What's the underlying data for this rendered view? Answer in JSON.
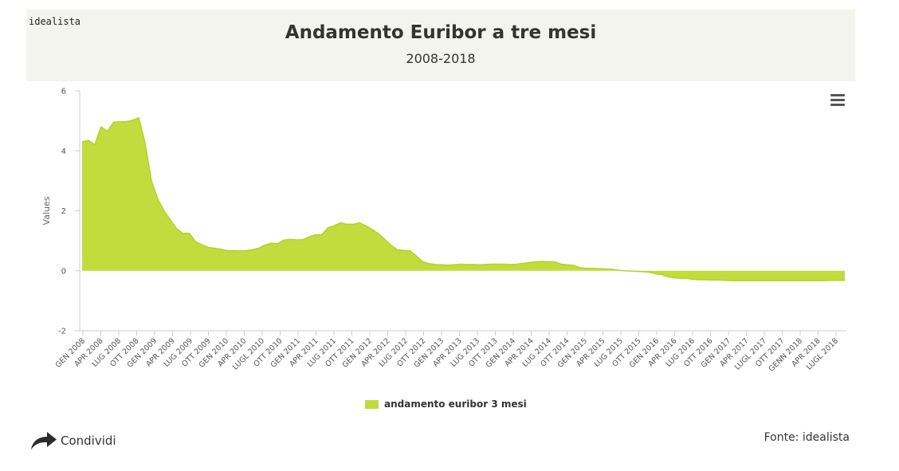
{
  "header": {
    "brand": "idealista",
    "title": "Andamento Euribor a tre mesi",
    "subtitle": "2008-2018"
  },
  "footer": {
    "share_label": "Condividi",
    "source": "Fonte: idealista"
  },
  "icons": {
    "menu": "hamburger-menu-icon",
    "share": "share-arrow-icon"
  },
  "chart_data": {
    "type": "area",
    "title": "Andamento Euribor a tre mesi",
    "subtitle": "2008-2018",
    "xlabel": "",
    "ylabel": "Values",
    "ylim": [
      -2,
      6
    ],
    "yticks": [
      -2,
      0,
      2,
      4,
      6
    ],
    "grid": false,
    "legend_position": "bottom-center",
    "color": "#c2dc3e",
    "xtick_labels": [
      "GEN 2008",
      "APR 2008",
      "LUG 2008",
      "OTT 2008",
      "GEN 2009",
      "APR 2009",
      "LUG 2009",
      "OTT 2009",
      "GEN 2010",
      "APR 2010",
      "LUGL 2010",
      "OTT 2010",
      "GEN 2011",
      "APR 2011",
      "LUG 2011",
      "OTT 2011",
      "GEN 2012",
      "APR 2012",
      "LUG 2012",
      "OTT 2012",
      "GEN 2013",
      "APR 2013",
      "LUG 2013",
      "OTT 2013",
      "GEN 2014",
      "APR 2014",
      "LUG 2014",
      "OTT 2014",
      "GEN 2015",
      "APR 2015",
      "LUG 2015",
      "OTT 2015",
      "GEN 2016",
      "APR 2016",
      "LUG 2016",
      "OTT 2016",
      "GEN 2017",
      "APR 2017",
      "LUGL 2017",
      "OTT 2017",
      "GENN 2018",
      "APR 2018",
      "LUGL 2018"
    ],
    "series": [
      {
        "name": "andamento euribor 3 mesi",
        "values": [
          4.3,
          4.35,
          4.2,
          4.8,
          4.65,
          4.95,
          4.97,
          4.97,
          5.02,
          5.1,
          4.25,
          3.0,
          2.4,
          2.0,
          1.7,
          1.4,
          1.25,
          1.25,
          0.97,
          0.87,
          0.78,
          0.75,
          0.72,
          0.67,
          0.67,
          0.66,
          0.67,
          0.7,
          0.75,
          0.86,
          0.92,
          0.9,
          1.02,
          1.05,
          1.03,
          1.04,
          1.13,
          1.2,
          1.2,
          1.43,
          1.5,
          1.6,
          1.55,
          1.55,
          1.6,
          1.5,
          1.38,
          1.24,
          1.05,
          0.85,
          0.7,
          0.68,
          0.67,
          0.5,
          0.3,
          0.24,
          0.21,
          0.2,
          0.19,
          0.2,
          0.22,
          0.21,
          0.21,
          0.2,
          0.21,
          0.22,
          0.22,
          0.22,
          0.21,
          0.22,
          0.25,
          0.28,
          0.3,
          0.31,
          0.3,
          0.3,
          0.22,
          0.2,
          0.18,
          0.1,
          0.08,
          0.08,
          0.07,
          0.06,
          0.05,
          0.02,
          0.0,
          -0.01,
          -0.02,
          -0.03,
          -0.05,
          -0.1,
          -0.13,
          -0.2,
          -0.24,
          -0.25,
          -0.26,
          -0.29,
          -0.3,
          -0.3,
          -0.31,
          -0.31,
          -0.32,
          -0.33,
          -0.33,
          -0.33,
          -0.33,
          -0.33,
          -0.33,
          -0.33,
          -0.33,
          -0.33,
          -0.33,
          -0.33,
          -0.33,
          -0.33,
          -0.33,
          -0.33,
          -0.33,
          -0.32,
          -0.32,
          -0.32
        ]
      }
    ]
  }
}
